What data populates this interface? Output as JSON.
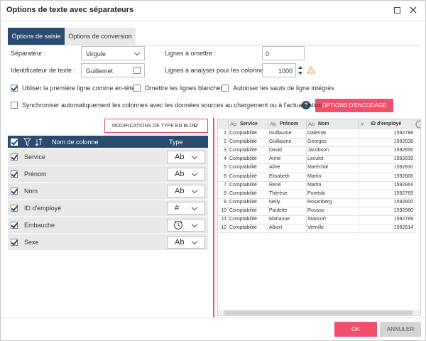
{
  "title": "Options de texte avec séparateurs",
  "tabs": [
    "Options de saisie",
    "Options de conversion"
  ],
  "form": {
    "separator_label": "Séparateur :",
    "separator_value": "Virgule",
    "text_id_label": "Identificateur de texte :",
    "text_id_value": "Guillemet",
    "skip_label": "Lignes à omettre :",
    "skip_value": "0",
    "scan_label": "Lignes à analyser pour les colonnes:",
    "scan_value": "1000"
  },
  "options": [
    {
      "label": "Utiliser la première ligne comme en-tête",
      "checked": true
    },
    {
      "label": "Omettre les lignes blanches",
      "checked": false
    },
    {
      "label": "Autoriser les sauts de ligne intégrés",
      "checked": false
    },
    {
      "label": "Synchroniser automatiquement les colonnes avec les données sources au chargement ou à l'actualisation",
      "checked": false
    }
  ],
  "encoding_button": "OPTIONS D'ENCODAGE",
  "bulk_button": "MODIFICATIONS DE TYPE EN BLOC",
  "columns_header": {
    "name": "Nom de colonne",
    "type": "Type"
  },
  "columns": [
    {
      "name": "Service",
      "type": "Ab"
    },
    {
      "name": "Prénom",
      "type": "Ab"
    },
    {
      "name": "Nom",
      "type": "Ab"
    },
    {
      "name": "ID d'employé",
      "type": "#"
    },
    {
      "name": "Embauche"
    },
    {
      "name": "Sexe",
      "type": "Ab"
    }
  ],
  "preview": {
    "headers": [
      {
        "type": "Ab",
        "name": "Service"
      },
      {
        "type": "Ab",
        "name": "Prénom"
      },
      {
        "type": "Ab",
        "name": "Nom"
      },
      {
        "type": "#",
        "name": "ID d'employé"
      }
    ],
    "rows": [
      [
        1,
        "Comptabilité",
        "Guillaume",
        "Dalemat",
        1592788
      ],
      [
        2,
        "Comptabilité",
        "Guillaume",
        "Georges",
        1592838
      ],
      [
        3,
        "Comptabilité",
        "David",
        "Jacobson",
        1592856
      ],
      [
        4,
        "Comptabilité",
        "Anne",
        "Leculot",
        1592839
      ],
      [
        5,
        "Comptabilité",
        "Aline",
        "Maréchal",
        1592830
      ],
      [
        6,
        "Comptabilité",
        "Elisabeth",
        "Martin",
        1592806
      ],
      [
        7,
        "Comptabilité",
        "René",
        "Martin",
        1592864
      ],
      [
        8,
        "Comptabilité",
        "Thérèse",
        "Poretski",
        1592769
      ],
      [
        9,
        "Comptabilité",
        "Nelly",
        "Rosenberg",
        1592800
      ],
      [
        10,
        "Comptabilité",
        "Paulette",
        "Rousso",
        1592880
      ],
      [
        11,
        "Comptabilité",
        "Marianne",
        "Stancort",
        1592789
      ],
      [
        12,
        "Comptabilité",
        "Albert",
        "Vernille",
        1592814
      ]
    ]
  },
  "buttons": {
    "ok": "OK",
    "cancel": "ANNULER"
  }
}
